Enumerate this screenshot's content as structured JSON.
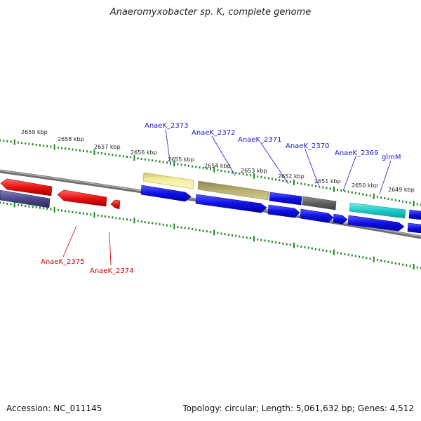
{
  "title": "Anaeromyxobacter sp. K, complete genome",
  "footer": {
    "accession": "Accession: NC_011145",
    "summary": "Topology: circular; Length: 5,061,632 bp; Genes: 4,512"
  },
  "ticks": [
    "2659 kbp",
    "2658 kbp",
    "2657 kbp",
    "2656 kbp",
    "2655 kbp",
    "2654 kbp",
    "2653 kbp",
    "2652 kbp",
    "2651 kbp",
    "2650 kbp",
    "2649 kbp"
  ],
  "upper_labels": [
    "AnaeK_2373",
    "AnaeK_2372",
    "AnaeK_2371",
    "AnaeK_2370",
    "AnaeK_2369",
    "glmM"
  ],
  "lower_labels": [
    "AnaeK_2375",
    "AnaeK_2374"
  ],
  "colors": {
    "blue_label": "#1a1acc",
    "red_label": "#cc0000",
    "tick": "#1a8a1a",
    "backbone": "#8a8a8a",
    "gene_blue": "#1010e6",
    "gene_red": "#e61010",
    "gene_navy": "#4a4a8a",
    "gene_yellow": "#f0e890",
    "gene_olive": "#b8b070",
    "gene_gray": "#606060",
    "gene_cyan": "#20c8c8"
  }
}
